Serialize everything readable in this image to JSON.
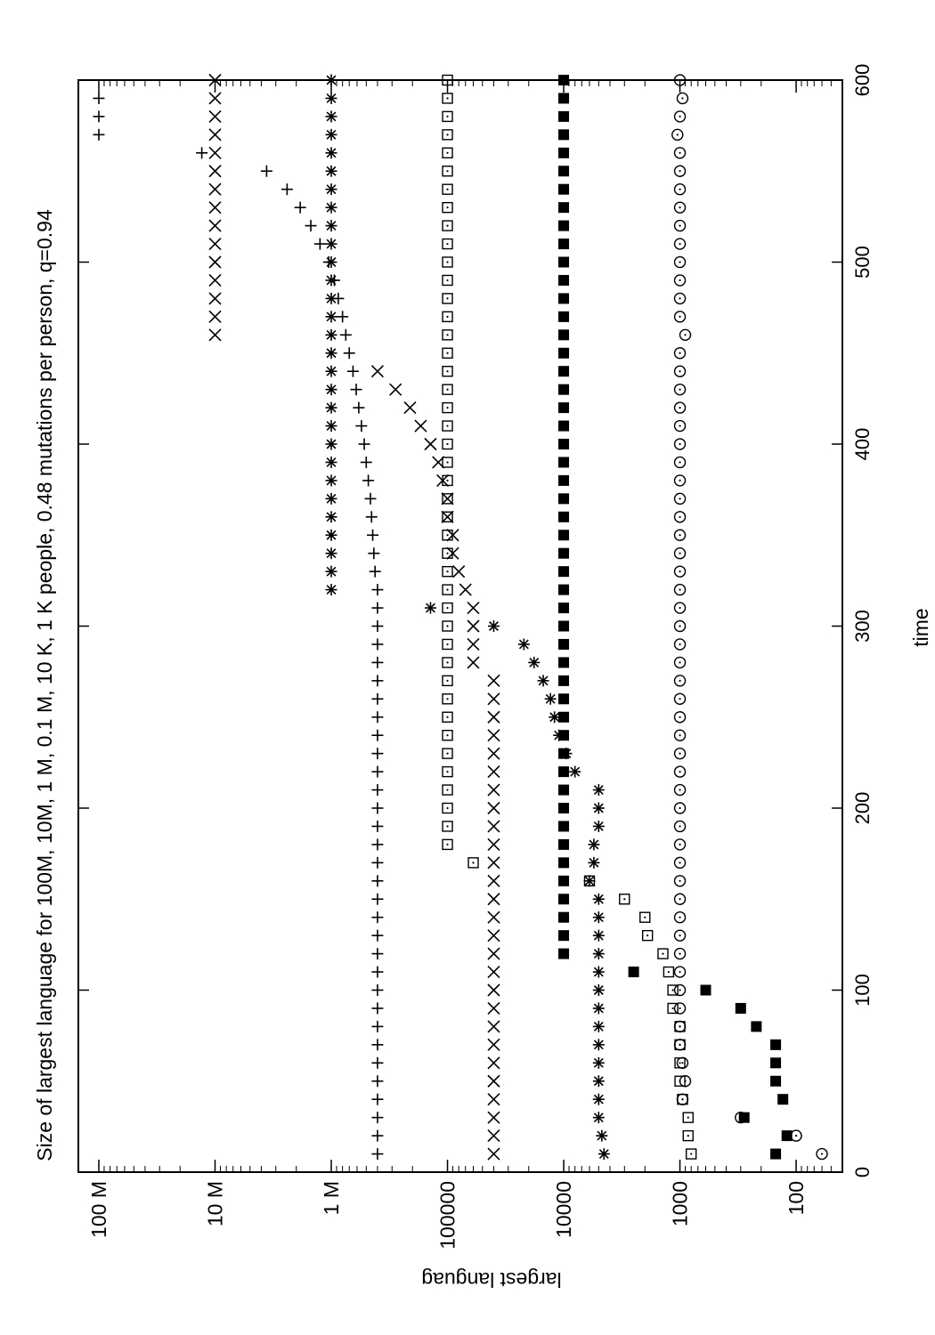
{
  "chart_data": {
    "type": "scatter",
    "title": "Size of largest language for 100M, 10M, 1 M, 0.1 M, 10 K, 1 K people, 0.48 mutations per person, q=0.94",
    "xlabel": "time",
    "ylabel": "largest languag",
    "xlim": [
      0,
      600
    ],
    "ylim": [
      40,
      150000000
    ],
    "yscale": "log",
    "grid": false,
    "legend": "none",
    "x_ticks": [
      0,
      100,
      200,
      300,
      400,
      500,
      600
    ],
    "x_tick_labels": [
      "0",
      "100",
      "200",
      "300",
      "400",
      "500",
      "600"
    ],
    "y_ticks": [
      100,
      1000,
      10000,
      100000,
      1000000,
      10000000,
      100000000
    ],
    "y_tick_labels": [
      "100",
      "1000",
      "10000",
      "100000",
      "1 M",
      "10 M",
      "100 M"
    ],
    "series": [
      {
        "marker": "plus",
        "x": [
          10,
          20,
          30,
          40,
          50,
          60,
          70,
          80,
          90,
          100,
          110,
          120,
          130,
          140,
          150,
          160,
          170,
          180,
          190,
          200,
          210,
          220,
          230,
          240,
          250,
          260,
          270,
          280,
          290,
          300,
          310,
          320,
          330,
          340,
          350,
          360,
          370,
          380,
          390,
          400,
          410,
          420,
          430,
          440,
          450,
          460,
          470,
          480,
          490,
          500,
          510,
          520,
          530,
          540,
          550,
          560,
          570,
          580,
          590
        ],
        "y": [
          400000,
          400000,
          400000,
          400000,
          400000,
          400000,
          400000,
          400000,
          400000,
          400000,
          400000,
          400000,
          400000,
          400000,
          400000,
          400000,
          400000,
          400000,
          400000,
          400000,
          400000,
          400000,
          400000,
          400000,
          400000,
          400000,
          400000,
          400000,
          400000,
          400000,
          400000,
          400000,
          420000,
          430000,
          440000,
          450000,
          460000,
          480000,
          500000,
          520000,
          550000,
          580000,
          610000,
          650000,
          700000,
          750000,
          800000,
          870000,
          940000,
          1050000,
          1250000,
          1500000,
          1850000,
          2400000,
          3600000,
          13000000,
          100000000,
          100000000,
          100000000
        ]
      },
      {
        "marker": "cross",
        "x": [
          10,
          20,
          30,
          40,
          50,
          60,
          70,
          80,
          90,
          100,
          110,
          120,
          130,
          140,
          150,
          160,
          170,
          180,
          190,
          200,
          210,
          220,
          230,
          240,
          250,
          260,
          270,
          280,
          290,
          300,
          310,
          320,
          330,
          340,
          350,
          360,
          370,
          380,
          390,
          400,
          410,
          420,
          430,
          440,
          460,
          470,
          480,
          490,
          500,
          510,
          520,
          530,
          540,
          550,
          560,
          570,
          580,
          590,
          600
        ],
        "y": [
          40000,
          40000,
          40000,
          40000,
          40000,
          40000,
          40000,
          40000,
          40000,
          40000,
          40000,
          40000,
          40000,
          40000,
          40000,
          40000,
          40000,
          40000,
          40000,
          40000,
          40000,
          40000,
          40000,
          40000,
          40000,
          40000,
          40000,
          60000,
          60000,
          60000,
          60000,
          70000,
          80000,
          90000,
          90000,
          100000,
          100000,
          110000,
          120000,
          140000,
          170000,
          210000,
          280000,
          400000,
          10000000,
          10000000,
          10000000,
          10000000,
          10000000,
          10000000,
          10000000,
          10000000,
          10000000,
          10000000,
          10000000,
          10000000,
          10000000,
          10000000,
          10000000
        ]
      },
      {
        "marker": "star",
        "x": [
          10,
          20,
          30,
          40,
          50,
          60,
          70,
          80,
          90,
          100,
          110,
          120,
          130,
          140,
          150,
          160,
          170,
          180,
          190,
          200,
          210,
          220,
          230,
          240,
          250,
          260,
          270,
          280,
          290,
          300,
          310,
          320,
          330,
          340,
          350,
          360,
          370,
          380,
          390,
          400,
          410,
          420,
          430,
          440,
          450,
          460,
          470,
          480,
          490,
          500,
          510,
          520,
          530,
          540,
          550,
          560,
          570,
          580,
          590,
          600
        ],
        "y": [
          4500,
          4700,
          5000,
          5000,
          5000,
          5000,
          5000,
          5000,
          5000,
          5000,
          5000,
          5000,
          5000,
          5000,
          5000,
          6000,
          5500,
          5500,
          5000,
          5000,
          5000,
          8000,
          9500,
          11000,
          12000,
          13000,
          15000,
          18000,
          22000,
          40000,
          140000,
          1000000,
          1000000,
          1000000,
          1000000,
          1000000,
          1000000,
          1000000,
          1000000,
          1000000,
          1000000,
          1000000,
          1000000,
          1000000,
          1000000,
          1000000,
          1000000,
          1000000,
          1000000,
          1000000,
          1000000,
          1000000,
          1000000,
          1000000,
          1000000,
          1000000,
          1000000,
          1000000,
          1000000,
          1000000
        ]
      },
      {
        "marker": "dotted-square",
        "x": [
          10,
          20,
          30,
          40,
          50,
          60,
          70,
          80,
          90,
          100,
          110,
          120,
          130,
          140,
          150,
          160,
          170,
          180,
          190,
          200,
          210,
          220,
          230,
          240,
          250,
          260,
          270,
          280,
          290,
          300,
          310,
          320,
          330,
          340,
          350,
          360,
          370,
          380,
          390,
          400,
          410,
          420,
          430,
          440,
          450,
          460,
          470,
          480,
          490,
          500,
          510,
          520,
          530,
          540,
          550,
          560,
          570,
          580,
          590,
          600
        ],
        "y": [
          800,
          850,
          850,
          950,
          1000,
          1000,
          1000,
          1000,
          1150,
          1150,
          1250,
          1400,
          1900,
          2000,
          3000,
          6000,
          60000,
          100000,
          100000,
          100000,
          100000,
          100000,
          100000,
          100000,
          100000,
          100000,
          100000,
          100000,
          100000,
          100000,
          100000,
          100000,
          100000,
          100000,
          100000,
          100000,
          100000,
          100000,
          100000,
          100000,
          100000,
          100000,
          100000,
          100000,
          100000,
          100000,
          100000,
          100000,
          100000,
          100000,
          100000,
          100000,
          100000,
          100000,
          100000,
          100000,
          100000,
          100000,
          100000,
          100000
        ]
      },
      {
        "marker": "filled-square",
        "x": [
          10,
          20,
          30,
          40,
          50,
          60,
          70,
          80,
          90,
          100,
          110,
          120,
          130,
          140,
          150,
          160,
          170,
          180,
          190,
          200,
          210,
          220,
          230,
          240,
          250,
          260,
          270,
          280,
          290,
          300,
          310,
          320,
          330,
          340,
          350,
          360,
          370,
          380,
          390,
          400,
          410,
          420,
          430,
          440,
          450,
          460,
          470,
          480,
          490,
          500,
          510,
          520,
          530,
          540,
          550,
          560,
          570,
          580,
          590,
          600
        ],
        "y": [
          150,
          120,
          280,
          130,
          150,
          150,
          150,
          220,
          300,
          600,
          2500,
          10000,
          10000,
          10000,
          10000,
          10000,
          10000,
          10000,
          10000,
          10000,
          10000,
          10000,
          10000,
          10000,
          10000,
          10000,
          10000,
          10000,
          10000,
          10000,
          10000,
          10000,
          10000,
          10000,
          10000,
          10000,
          10000,
          10000,
          10000,
          10000,
          10000,
          10000,
          10000,
          10000,
          10000,
          10000,
          10000,
          10000,
          10000,
          10000,
          10000,
          10000,
          10000,
          10000,
          10000,
          10000,
          10000,
          10000,
          10000,
          10000
        ]
      },
      {
        "marker": "dotted-circle",
        "x": [
          10,
          20,
          30,
          40,
          50,
          60,
          70,
          80,
          90,
          100,
          110,
          120,
          130,
          140,
          150,
          160,
          170,
          180,
          190,
          200,
          210,
          220,
          230,
          240,
          250,
          260,
          270,
          280,
          290,
          300,
          310,
          320,
          330,
          340,
          350,
          360,
          370,
          380,
          390,
          400,
          410,
          420,
          430,
          440,
          450,
          460,
          470,
          480,
          490,
          500,
          510,
          520,
          530,
          540,
          550,
          560,
          570,
          580,
          590,
          600
        ],
        "y": [
          60,
          100,
          300,
          950,
          900,
          950,
          1000,
          1000,
          1000,
          1000,
          1000,
          1000,
          1000,
          1000,
          1000,
          1000,
          1000,
          1000,
          1000,
          1000,
          1000,
          1000,
          1000,
          1000,
          1000,
          1000,
          1000,
          1000,
          1000,
          1000,
          1000,
          1000,
          1000,
          1000,
          1000,
          1000,
          1000,
          1000,
          1000,
          1000,
          1000,
          1000,
          1000,
          1000,
          1000,
          900,
          1000,
          1000,
          1000,
          1000,
          1000,
          1000,
          1000,
          1000,
          1000,
          1000,
          1050,
          1000,
          950,
          1000
        ]
      }
    ]
  }
}
